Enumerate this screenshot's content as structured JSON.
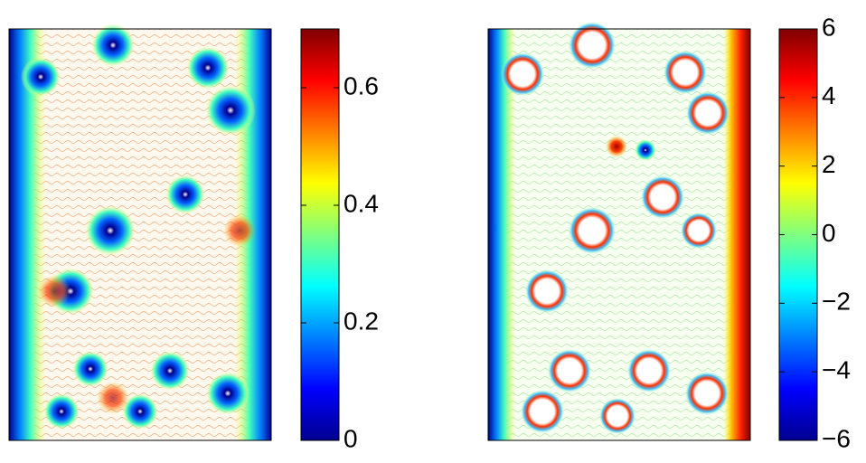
{
  "chart_data": [
    {
      "type": "contour",
      "colormap": "jet",
      "clim": [
        0,
        0.7
      ],
      "yticks": [
        0,
        0.2,
        0.4,
        0.6
      ]
    },
    {
      "type": "contour",
      "colormap": "jet",
      "clim": [
        -6,
        6
      ],
      "yticks": [
        {
          "value": -6,
          "label": "−6"
        },
        {
          "value": -4,
          "label": "−4"
        },
        {
          "value": -2,
          "label": "−2"
        },
        0,
        2,
        4,
        6
      ]
    }
  ]
}
